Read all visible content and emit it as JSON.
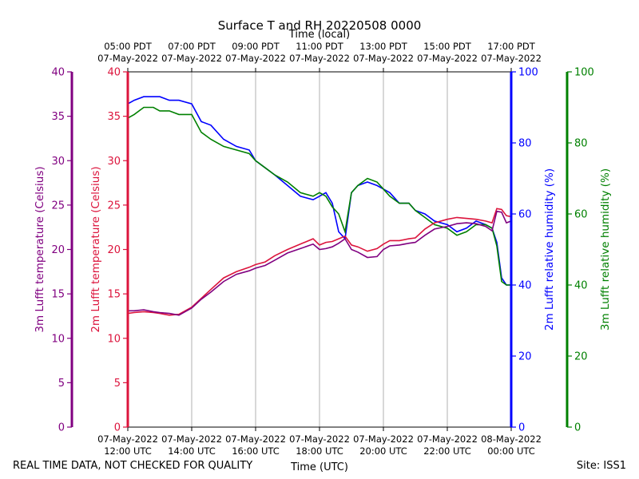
{
  "chart_data": {
    "type": "line",
    "title": "Surface T and RH 20220508 0000",
    "x_top_label": "Time (local)",
    "x_bottom_label": "Time (UTC)",
    "x_range_hours": [
      12,
      24
    ],
    "x_ticks": [
      {
        "hour": 12,
        "utc_date": "07-May-2022",
        "utc_time": "12:00 UTC",
        "local_time": "05:00 PDT",
        "local_date": "07-May-2022"
      },
      {
        "hour": 14,
        "utc_date": "07-May-2022",
        "utc_time": "14:00 UTC",
        "local_time": "07:00 PDT",
        "local_date": "07-May-2022"
      },
      {
        "hour": 16,
        "utc_date": "07-May-2022",
        "utc_time": "16:00 UTC",
        "local_time": "09:00 PDT",
        "local_date": "07-May-2022"
      },
      {
        "hour": 18,
        "utc_date": "07-May-2022",
        "utc_time": "18:00 UTC",
        "local_time": "11:00 PDT",
        "local_date": "07-May-2022"
      },
      {
        "hour": 20,
        "utc_date": "07-May-2022",
        "utc_time": "20:00 UTC",
        "local_time": "13:00 PDT",
        "local_date": "07-May-2022"
      },
      {
        "hour": 22,
        "utc_date": "07-May-2022",
        "utc_time": "22:00 UTC",
        "local_time": "15:00 PDT",
        "local_date": "07-May-2022"
      },
      {
        "hour": 24,
        "utc_date": "08-May-2022",
        "utc_time": "00:00 UTC",
        "local_time": "17:00 PDT",
        "local_date": "07-May-2022"
      }
    ],
    "axes": {
      "t3m": {
        "label": "3m Lufft temperature (Celsius)",
        "range": [
          0,
          40
        ],
        "ticks": [
          0,
          5,
          10,
          15,
          20,
          25,
          30,
          35,
          40
        ],
        "color": "#800080"
      },
      "t2m": {
        "label": "2m Lufft temperature (Celsius)",
        "range": [
          0,
          40
        ],
        "ticks": [
          0,
          5,
          10,
          15,
          20,
          25,
          30,
          35,
          40
        ],
        "color": "#dc143c"
      },
      "rh2m": {
        "label": "2m Lufft relative humidity (%)",
        "range": [
          0,
          100
        ],
        "ticks": [
          0,
          20,
          40,
          60,
          80,
          100
        ],
        "color": "#0000ff"
      },
      "rh3m": {
        "label": "3m Lufft relative humidity (%)",
        "range": [
          0,
          100
        ],
        "ticks": [
          0,
          20,
          40,
          60,
          80,
          100
        ],
        "color": "#008000"
      }
    },
    "series": [
      {
        "name": "2m Lufft relative humidity",
        "axis": "rh2m",
        "color": "#0000ff",
        "x": [
          12.0,
          12.2,
          12.5,
          12.8,
          13.0,
          13.3,
          13.6,
          14.0,
          14.3,
          14.6,
          15.0,
          15.4,
          15.8,
          16.0,
          16.3,
          16.6,
          17.0,
          17.4,
          17.8,
          18.0,
          18.2,
          18.4,
          18.6,
          18.8,
          19.0,
          19.2,
          19.5,
          19.8,
          20.0,
          20.2,
          20.5,
          20.8,
          21.0,
          21.3,
          21.6,
          22.0,
          22.3,
          22.6,
          22.9,
          23.2,
          23.4,
          23.55,
          23.7,
          23.85,
          24.0
        ],
        "values": [
          91,
          92,
          93,
          93,
          93,
          92,
          92,
          91,
          86,
          85,
          81,
          79,
          78,
          75,
          73,
          71,
          68,
          65,
          64,
          65,
          66,
          63,
          55,
          53,
          66,
          68,
          69,
          68,
          67,
          66,
          63,
          63,
          61,
          60,
          58,
          57,
          55,
          56,
          58,
          57,
          56,
          52,
          42,
          40,
          40
        ]
      },
      {
        "name": "3m Lufft relative humidity",
        "axis": "rh3m",
        "color": "#008000",
        "x": [
          12.0,
          12.2,
          12.5,
          12.8,
          13.0,
          13.3,
          13.6,
          14.0,
          14.3,
          14.6,
          15.0,
          15.4,
          15.8,
          16.0,
          16.3,
          16.6,
          17.0,
          17.4,
          17.8,
          18.0,
          18.2,
          18.4,
          18.6,
          18.8,
          19.0,
          19.2,
          19.5,
          19.8,
          20.0,
          20.2,
          20.5,
          20.8,
          21.0,
          21.3,
          21.6,
          22.0,
          22.3,
          22.6,
          22.9,
          23.2,
          23.4,
          23.55,
          23.7,
          23.85,
          24.0
        ],
        "values": [
          87,
          88,
          90,
          90,
          89,
          89,
          88,
          88,
          83,
          81,
          79,
          78,
          77,
          75,
          73,
          71,
          69,
          66,
          65,
          66,
          65,
          62,
          60,
          55,
          66,
          68,
          70,
          69,
          67,
          65,
          63,
          63,
          61,
          59,
          57,
          56,
          54,
          55,
          57,
          57,
          56,
          51,
          41,
          40,
          40
        ]
      },
      {
        "name": "2m Lufft temperature",
        "axis": "t2m",
        "color": "#dc143c",
        "x": [
          12.0,
          12.2,
          12.5,
          12.8,
          13.0,
          13.3,
          13.6,
          14.0,
          14.3,
          14.6,
          15.0,
          15.4,
          15.8,
          16.0,
          16.3,
          16.6,
          17.0,
          17.4,
          17.8,
          18.0,
          18.2,
          18.4,
          18.6,
          18.8,
          19.0,
          19.2,
          19.5,
          19.8,
          20.0,
          20.2,
          20.5,
          20.8,
          21.0,
          21.3,
          21.6,
          22.0,
          22.3,
          22.6,
          22.9,
          23.2,
          23.4,
          23.55,
          23.7,
          23.85,
          24.0
        ],
        "values": [
          12.8,
          12.9,
          13.0,
          12.9,
          12.8,
          12.6,
          12.7,
          13.5,
          14.5,
          15.5,
          16.8,
          17.5,
          18.0,
          18.3,
          18.6,
          19.3,
          20.0,
          20.6,
          21.2,
          20.5,
          20.8,
          20.9,
          21.2,
          21.5,
          20.5,
          20.3,
          19.8,
          20.1,
          20.6,
          21.0,
          21.0,
          21.2,
          21.3,
          22.3,
          23.0,
          23.4,
          23.6,
          23.5,
          23.4,
          23.2,
          23.0,
          24.6,
          24.5,
          23.8,
          23.7
        ]
      },
      {
        "name": "3m Lufft temperature",
        "axis": "t3m",
        "color": "#800080",
        "x": [
          12.0,
          12.2,
          12.5,
          12.8,
          13.0,
          13.3,
          13.6,
          14.0,
          14.3,
          14.6,
          15.0,
          15.4,
          15.8,
          16.0,
          16.3,
          16.6,
          17.0,
          17.4,
          17.8,
          18.0,
          18.2,
          18.4,
          18.6,
          18.8,
          19.0,
          19.2,
          19.5,
          19.8,
          20.0,
          20.2,
          20.5,
          20.8,
          21.0,
          21.3,
          21.6,
          22.0,
          22.3,
          22.6,
          22.9,
          23.2,
          23.4,
          23.55,
          23.7,
          23.85,
          24.0
        ],
        "values": [
          13.1,
          13.1,
          13.2,
          13.0,
          12.9,
          12.8,
          12.6,
          13.4,
          14.4,
          15.2,
          16.4,
          17.2,
          17.6,
          17.9,
          18.2,
          18.8,
          19.6,
          20.1,
          20.6,
          20.0,
          20.1,
          20.3,
          20.7,
          21.2,
          20.0,
          19.7,
          19.1,
          19.2,
          20.0,
          20.4,
          20.5,
          20.7,
          20.8,
          21.6,
          22.3,
          22.6,
          22.9,
          23.0,
          22.9,
          22.6,
          22.1,
          24.3,
          24.2,
          23.0,
          23.2
        ]
      }
    ]
  },
  "footer": {
    "left_note": "REAL TIME DATA, NOT CHECKED FOR QUALITY",
    "site": "Site: ISS1"
  }
}
